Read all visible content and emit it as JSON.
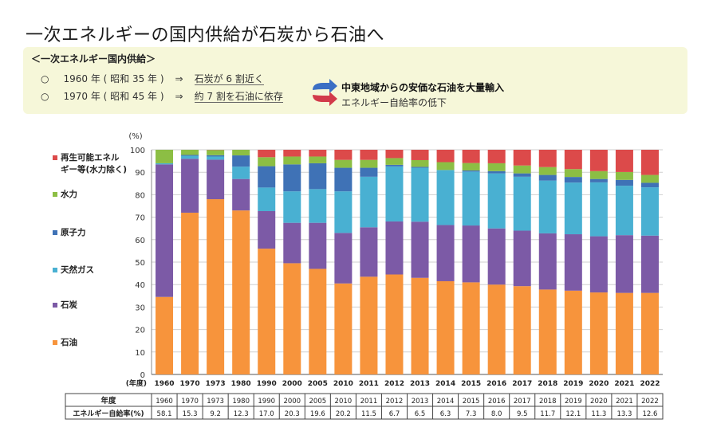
{
  "title": "一次エネルギーの国内供給が石炭から石油へ",
  "summary": {
    "heading": "＜一次エネルギー国内供給＞",
    "rows": [
      {
        "bullet": "○",
        "year": "1960 年 ( 昭和 35 年 )",
        "arrow": "⇒",
        "share": "石炭が 6 割近く"
      },
      {
        "bullet": "○",
        "year": "1970 年 ( 昭和 45 年 )",
        "arrow": "⇒",
        "share": "約 7 割を石油に依存"
      }
    ],
    "callout_main": "中東地域からの安価な石油を大量輸入",
    "callout_sub": "エネルギー自給率の低下",
    "colors": {
      "arrow_top": "#3b6fc4",
      "arrow_bottom": "#d23a4a"
    }
  },
  "chart_data": {
    "type": "bar",
    "stacked": true,
    "y_unit_label": "(%)",
    "x_unit_label": "(年度)",
    "ylim": [
      0,
      100
    ],
    "yticks": [
      0,
      10,
      20,
      30,
      40,
      50,
      60,
      70,
      80,
      90,
      100
    ],
    "grid": true,
    "legend_position": "left",
    "categories": [
      "1960",
      "1970",
      "1973",
      "1980",
      "1990",
      "2000",
      "2005",
      "2010",
      "2011",
      "2012",
      "2013",
      "2014",
      "2015",
      "2016",
      "2017",
      "2018",
      "2019",
      "2020",
      "2021",
      "2022"
    ],
    "series": [
      {
        "name": "石油",
        "color": "#f7943c",
        "values": [
          34.5,
          72,
          78,
          73,
          56,
          49.5,
          47,
          40.5,
          43.5,
          44.5,
          43,
          41.5,
          41,
          40,
          39.3,
          37.8,
          37.3,
          36.5,
          36.3,
          36.3
        ]
      },
      {
        "name": "石炭",
        "color": "#7c5aa6",
        "values": [
          59,
          24,
          17.6,
          14,
          16.7,
          18,
          20.5,
          22.5,
          22,
          23.6,
          25,
          25,
          25.3,
          25,
          24.7,
          25,
          25.1,
          25,
          25.7,
          25.5
        ]
      },
      {
        "name": "天然ガス",
        "color": "#49b0d2",
        "values": [
          0.5,
          1.3,
          1.4,
          5.5,
          10.5,
          14,
          15,
          18.5,
          22.5,
          24.5,
          24,
          24.5,
          24,
          24.5,
          24,
          23.5,
          23,
          24,
          22,
          21.5
        ]
      },
      {
        "name": "原子力",
        "color": "#3f72b6",
        "values": [
          0,
          0.4,
          0.6,
          5,
          9.5,
          12,
          11.5,
          10.5,
          4,
          0.7,
          0.4,
          0,
          0.5,
          1,
          1.5,
          2.5,
          2.5,
          1.5,
          2.6,
          2
        ]
      },
      {
        "name": "水力",
        "color": "#8cbe44",
        "values": [
          6,
          2.3,
          2.3,
          2.5,
          4,
          3.5,
          3,
          3.5,
          3.5,
          3,
          3,
          3.5,
          3.3,
          3.5,
          3.5,
          3.5,
          3.5,
          3.5,
          3.5,
          3.5
        ]
      },
      {
        "name": "再生可能エネルギー等(水力除く)",
        "color": "#dc4a4a",
        "values": [
          0,
          0,
          0.1,
          0,
          3.3,
          3,
          3,
          4.5,
          4.5,
          3.7,
          4.6,
          5.5,
          5.9,
          6,
          7,
          7.7,
          8.6,
          9.5,
          9.9,
          11.2
        ]
      }
    ],
    "legend": [
      {
        "label": "再生可能エネル\nギー等(水力除く)",
        "color": "#dc4a4a"
      },
      {
        "label": "水力",
        "color": "#8cbe44"
      },
      {
        "label": "原子力",
        "color": "#3f72b6"
      },
      {
        "label": "天然ガス",
        "color": "#49b0d2"
      },
      {
        "label": "石炭",
        "color": "#7c5aa6"
      },
      {
        "label": "石油",
        "color": "#f7943c"
      }
    ],
    "table": {
      "row_headers": [
        "年度",
        "エネルギー自給率(%)"
      ],
      "self_sufficiency": [
        "58.1",
        "15.3",
        "9.2",
        "12.3",
        "17.0",
        "20.3",
        "19.6",
        "20.2",
        "11.5",
        "6.7",
        "6.5",
        "6.3",
        "7.3",
        "8.0",
        "9.5",
        "11.7",
        "12.1",
        "11.3",
        "13.3",
        "12.6"
      ]
    }
  }
}
